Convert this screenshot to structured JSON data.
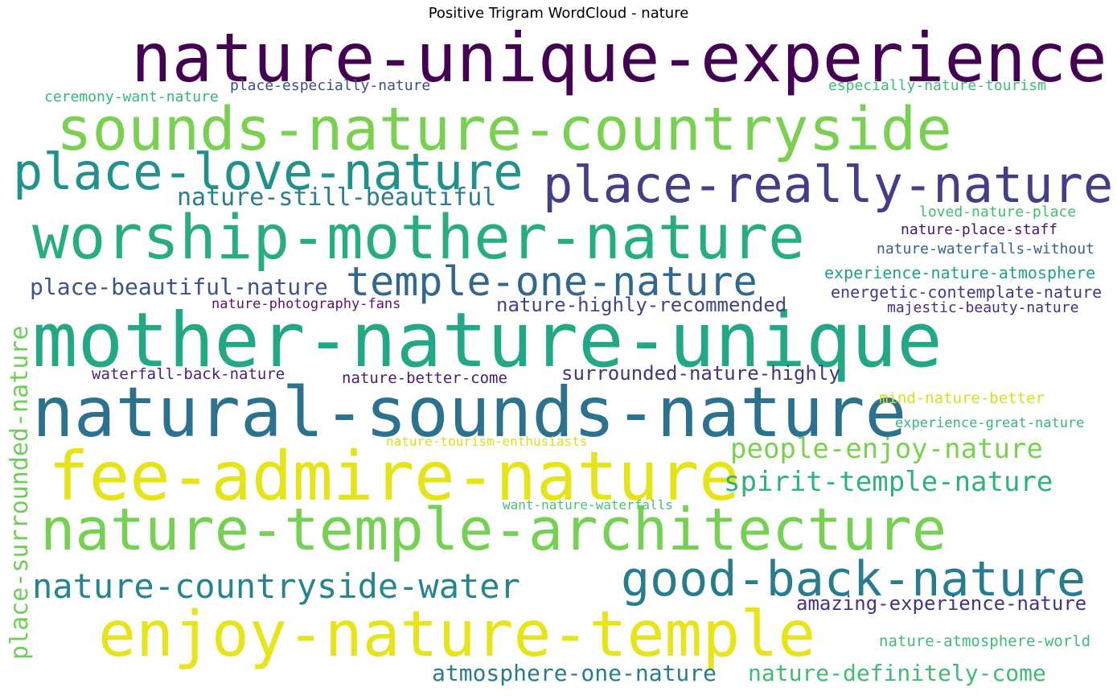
{
  "chart_data": {
    "type": "wordcloud",
    "title": "Positive Trigram WordCloud - nature",
    "words": [
      {
        "text": "nature-unique-experience",
        "color": "#440154"
      },
      {
        "text": "sounds-nature-countryside",
        "color": "#7ad151"
      },
      {
        "text": "place-love-nature",
        "color": "#21918c"
      },
      {
        "text": "place-really-nature",
        "color": "#433e85"
      },
      {
        "text": "worship-mother-nature",
        "color": "#27ad81"
      },
      {
        "text": "mother-nature-unique",
        "color": "#22a884"
      },
      {
        "text": "natural-sounds-nature",
        "color": "#2c728e"
      },
      {
        "text": "fee-admire-nature",
        "color": "#e4e419"
      },
      {
        "text": "nature-temple-architecture",
        "color": "#75d054"
      },
      {
        "text": "enjoy-nature-temple",
        "color": "#e7e419"
      },
      {
        "text": "good-back-nature",
        "color": "#287c8e"
      },
      {
        "text": "nature-countryside-water",
        "color": "#25858e"
      },
      {
        "text": "temple-one-nature",
        "color": "#31688e"
      },
      {
        "text": "place-surrounded-nature",
        "color": "#6ece58"
      },
      {
        "text": "people-enjoy-nature",
        "color": "#7ad151"
      },
      {
        "text": "spirit-temple-nature",
        "color": "#2db27d"
      },
      {
        "text": "nature-still-beautiful",
        "color": "#287d8e"
      },
      {
        "text": "place-beautiful-nature",
        "color": "#3b528b"
      },
      {
        "text": "nature-highly-recommended",
        "color": "#414487"
      },
      {
        "text": "surrounded-nature-highly",
        "color": "#46337f"
      },
      {
        "text": "atmosphere-one-nature",
        "color": "#297b8e"
      },
      {
        "text": "nature-definitely-come",
        "color": "#3fbc73"
      },
      {
        "text": "amazing-experience-nature",
        "color": "#46337f"
      },
      {
        "text": "ceremony-want-nature",
        "color": "#35b779"
      },
      {
        "text": "place-especially-nature",
        "color": "#3e4c8a"
      },
      {
        "text": "especially-nature-tourism",
        "color": "#3ebc74"
      },
      {
        "text": "loved-nature-place",
        "color": "#40bd72"
      },
      {
        "text": "nature-place-staff",
        "color": "#481467"
      },
      {
        "text": "nature-waterfalls-without",
        "color": "#33638d"
      },
      {
        "text": "experience-nature-atmosphere",
        "color": "#1fa088"
      },
      {
        "text": "energetic-contemplate-nature",
        "color": "#443a83"
      },
      {
        "text": "nature-photography-fans",
        "color": "#5c126e"
      },
      {
        "text": "majestic-beauty-nature",
        "color": "#472d7b"
      },
      {
        "text": "waterfall-back-nature",
        "color": "#482576"
      },
      {
        "text": "nature-better-come",
        "color": "#481f70"
      },
      {
        "text": "mind-nature-better",
        "color": "#d2e21b"
      },
      {
        "text": "experience-great-nature",
        "color": "#35b779"
      },
      {
        "text": "nature-tourism-enthusiasts",
        "color": "#d8e219"
      },
      {
        "text": "want-nature-waterfalls",
        "color": "#4ac16d"
      },
      {
        "text": "nature-atmosphere-world",
        "color": "#3dbc74"
      }
    ]
  }
}
